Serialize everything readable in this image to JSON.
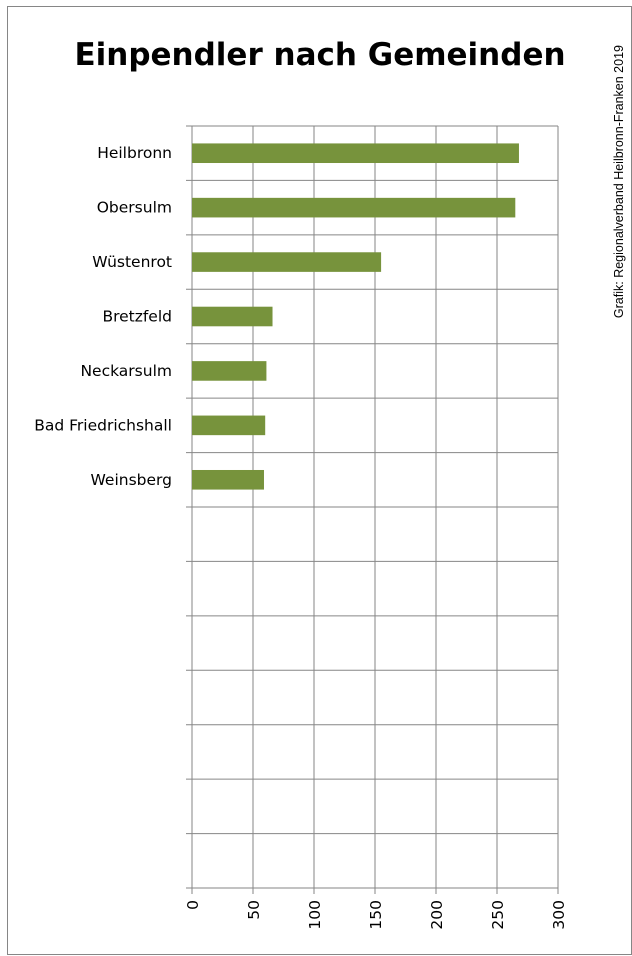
{
  "chart_data": {
    "type": "bar",
    "orientation": "horizontal",
    "title": "Einpendler nach Gemeinden",
    "credit": "Grafik: Regionalverband Heilbronn-Franken 2019",
    "categories": [
      "Heilbronn",
      "Obersulm",
      "Wüstenrot",
      "Bretzfeld",
      "Neckarsulm",
      "Bad Friedrichshall",
      "Weinsberg"
    ],
    "values": [
      268,
      265,
      155,
      66,
      61,
      60,
      59
    ],
    "xlim": [
      0,
      300
    ],
    "xticks": [
      "0",
      "50",
      "100",
      "150",
      "200",
      "250",
      "300"
    ],
    "tick_values": [
      0,
      50,
      100,
      150,
      200,
      250,
      300
    ],
    "category_slots": 14,
    "bar_color": "#77933C",
    "grid": true,
    "legend": "none"
  }
}
